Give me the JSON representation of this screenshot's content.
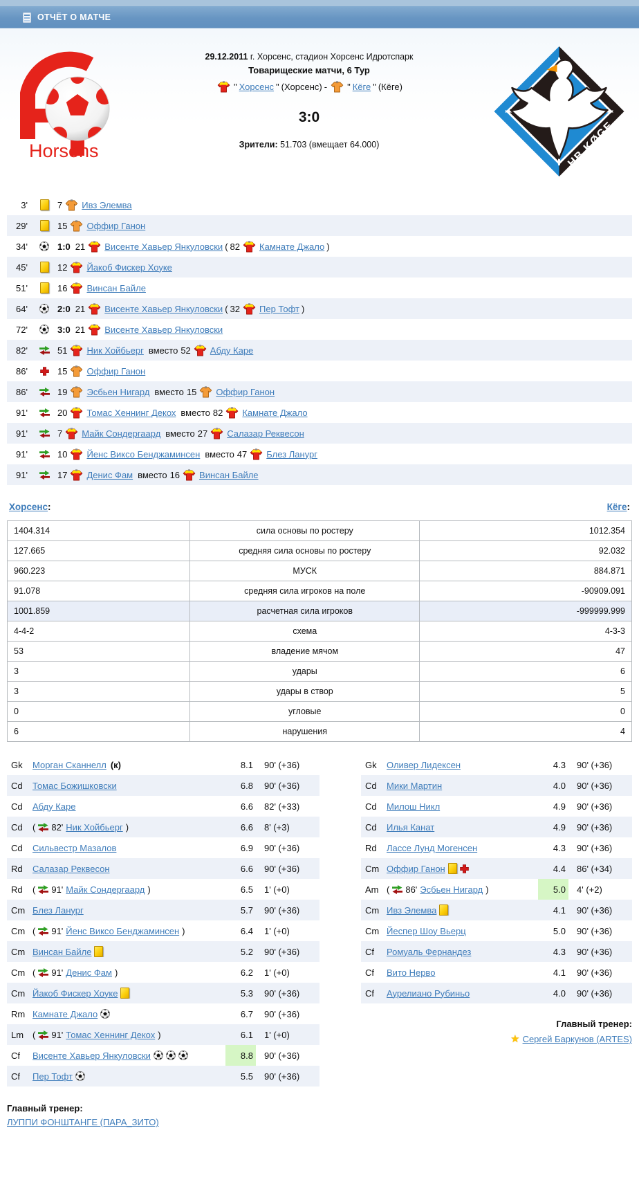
{
  "header": {
    "title": "ОТЧЁТ О МАТЧЕ"
  },
  "match": {
    "date": "29.12.2011",
    "venue": " г. Хорсенс, стадион Хорсенс Идротспарк",
    "tournament": "Товарищеские матчи, 6 Тур",
    "quote": "\"",
    "home": {
      "name": "Хорсенс",
      "alias": " (Хорсенс) "
    },
    "separator": "- ",
    "away": {
      "name": "Кёге",
      "alias": " (Кёге)"
    },
    "score": "3:0",
    "spectators_label": "Зрители:",
    "spectators": " 51.703 (вмещает 64.000)"
  },
  "logos": {
    "home": {
      "caption": "Horsens"
    },
    "away": {
      "caption": "HB KØGE"
    }
  },
  "labels": {
    "instead": "вместо",
    "paren_open": "(",
    "paren_close": ")",
    "captain_suffix": "(к)"
  },
  "icons": {
    "goal": "soccer-ball",
    "yellow-card": "yellow-card",
    "substitution": "sub-arrows-green-red",
    "injury": "red-cross",
    "coach_star": "★"
  },
  "colors": {
    "link": "#3e7cba",
    "row_alt": "#edf1f8",
    "stat_highlight": "#e9eef8",
    "rating_highlight": "#d6f6c5",
    "card_yellow": "#fccf0a",
    "sub_in_green": "#2f9e23",
    "sub_out_red": "#a21212",
    "injury_red": "#d11a1a",
    "home_jersey": "#e5231b",
    "home_jersey_accent": "#ffe400",
    "away_jersey": "#f49b38",
    "home_logo_red": "#e5231b",
    "away_logo_blue": "#1f8ad2",
    "away_logo_black": "#241b19",
    "swan_beak_orange": "#f59300"
  },
  "events": [
    {
      "time": "3'",
      "type": "yellow-card",
      "num": "7",
      "team": "away",
      "player": "Ивз Элемва"
    },
    {
      "time": "29'",
      "type": "yellow-card",
      "num": "15",
      "team": "away",
      "player": "Оффир Ганон"
    },
    {
      "time": "34'",
      "type": "goal",
      "score": "1:0",
      "num": "21",
      "team": "home",
      "player": "Висенте Хавьер Янкуловски",
      "assist": {
        "num": "82",
        "team": "home",
        "player": "Камнате Джало"
      }
    },
    {
      "time": "45'",
      "type": "yellow-card",
      "num": "12",
      "team": "home",
      "player": "Йакоб Фискер Хоуке"
    },
    {
      "time": "51'",
      "type": "yellow-card",
      "num": "16",
      "team": "home",
      "player": "Винсан Байле"
    },
    {
      "time": "64'",
      "type": "goal",
      "score": "2:0",
      "num": "21",
      "team": "home",
      "player": "Висенте Хавьер Янкуловски",
      "assist": {
        "num": "32",
        "team": "home",
        "player": "Пер Тофт"
      }
    },
    {
      "time": "72'",
      "type": "goal",
      "score": "3:0",
      "num": "21",
      "team": "home",
      "player": "Висенте Хавьер Янкуловски"
    },
    {
      "time": "82'",
      "type": "substitution",
      "num": "51",
      "team": "home",
      "player": "Ник Хойбьерг",
      "out": {
        "num": "52",
        "team": "home",
        "player": "Абду Каре"
      }
    },
    {
      "time": "86'",
      "type": "injury",
      "num": "15",
      "team": "away",
      "player": "Оффир Ганон"
    },
    {
      "time": "86'",
      "type": "substitution",
      "num": "19",
      "team": "away",
      "player": "Эсбьен Нигард",
      "out": {
        "num": "15",
        "team": "away",
        "player": "Оффир Ганон"
      }
    },
    {
      "time": "91'",
      "type": "substitution",
      "num": "20",
      "team": "home",
      "player": "Томас Хеннинг Декох",
      "out": {
        "num": "82",
        "team": "home",
        "player": "Камнате Джало"
      }
    },
    {
      "time": "91'",
      "type": "substitution",
      "num": "7",
      "team": "home",
      "player": "Майк Сондергаард",
      "out": {
        "num": "27",
        "team": "home",
        "player": "Салазар Реквесон"
      }
    },
    {
      "time": "91'",
      "type": "substitution",
      "num": "10",
      "team": "home",
      "player": "Йенс Виксо Бенджаминсен",
      "out": {
        "num": "47",
        "team": "home",
        "player": "Блез Ланург"
      }
    },
    {
      "time": "91'",
      "type": "substitution",
      "num": "17",
      "team": "home",
      "player": "Денис Фам",
      "out": {
        "num": "16",
        "team": "home",
        "player": "Винсан Байле"
      }
    }
  ],
  "sections": {
    "home_team": "Хорсенс",
    "away_team": "Кёге",
    "colon": ":"
  },
  "stats": {
    "rows": [
      {
        "home": "1404.314",
        "label": "сила основы по ростеру",
        "away": "1012.354"
      },
      {
        "home": "127.665",
        "label": "средняя сила основы по ростеру",
        "away": "92.032"
      },
      {
        "home": "960.223",
        "label": "МУСК",
        "away": "884.871"
      },
      {
        "home": "91.078",
        "label": "средняя сила игроков на поле",
        "away": "-90909.091"
      },
      {
        "home": "1001.859",
        "label": "расчетная сила игроков",
        "away": "-999999.999",
        "highlight": true
      },
      {
        "home": "4-4-2",
        "label": "схема",
        "away": "4-3-3"
      },
      {
        "home": "53",
        "label": "владение мячом",
        "away": "47"
      },
      {
        "home": "3",
        "label": "удары",
        "away": "6"
      },
      {
        "home": "3",
        "label": "удары в створ",
        "away": "5"
      },
      {
        "home": "0",
        "label": "угловые",
        "away": "0"
      },
      {
        "home": "6",
        "label": "нарушения",
        "away": "4"
      }
    ]
  },
  "rosters": {
    "home": [
      {
        "pos": "Gk",
        "name": "Морган Сканнелл",
        "captain": true,
        "rating": "8.1",
        "time": "90' (+36)"
      },
      {
        "pos": "Cd",
        "name": "Томас Божишковски",
        "rating": "6.8",
        "time": "90' (+36)"
      },
      {
        "pos": "Cd",
        "name": "Абду Каре",
        "rating": "6.6",
        "time": "82' (+33)"
      },
      {
        "pos": "Cd",
        "sub_in": "82'",
        "name": "Ник Хойбьерг",
        "rating": "6.6",
        "time": "8' (+3)"
      },
      {
        "pos": "Cd",
        "name": "Сильвестр Мазалов",
        "rating": "6.9",
        "time": "90' (+36)"
      },
      {
        "pos": "Rd",
        "name": "Салазар Реквесон",
        "rating": "6.6",
        "time": "90' (+36)"
      },
      {
        "pos": "Rd",
        "sub_in": "91'",
        "name": "Майк Сондергаард",
        "rating": "6.5",
        "time": "1' (+0)"
      },
      {
        "pos": "Cm",
        "name": "Блез Ланург",
        "rating": "5.7",
        "time": "90' (+36)"
      },
      {
        "pos": "Cm",
        "sub_in": "91'",
        "name": "Йенс Виксо Бенджаминсен",
        "rating": "6.4",
        "time": "1' (+0)"
      },
      {
        "pos": "Cm",
        "name": "Винсан Байле",
        "icons": [
          "yellow-card"
        ],
        "rating": "5.2",
        "time": "90' (+36)"
      },
      {
        "pos": "Cm",
        "sub_in": "91'",
        "name": "Денис Фам",
        "rating": "6.2",
        "time": "1' (+0)"
      },
      {
        "pos": "Cm",
        "name": "Йакоб Фискер Хоуке",
        "icons": [
          "yellow-card"
        ],
        "rating": "5.3",
        "time": "90' (+36)"
      },
      {
        "pos": "Rm",
        "name": "Камнате Джало",
        "icons": [
          "ball"
        ],
        "rating": "6.7",
        "time": "90' (+36)"
      },
      {
        "pos": "Lm",
        "sub_in": "91'",
        "name": "Томас Хеннинг Декох",
        "rating": "6.1",
        "time": "1' (+0)"
      },
      {
        "pos": "Cf",
        "name": "Висенте Хавьер Янкуловски",
        "icons": [
          "ball",
          "ball",
          "ball"
        ],
        "rating": "8.8",
        "highlight": true,
        "time": "90' (+36)"
      },
      {
        "pos": "Cf",
        "name": "Пер Тофт",
        "icons": [
          "ball"
        ],
        "rating": "5.5",
        "time": "90' (+36)"
      }
    ],
    "away": [
      {
        "pos": "Gk",
        "name": "Оливер Лидексен",
        "rating": "4.3",
        "time": "90' (+36)"
      },
      {
        "pos": "Cd",
        "name": "Мики Мартин",
        "rating": "4.0",
        "time": "90' (+36)"
      },
      {
        "pos": "Cd",
        "name": "Милош Никл",
        "rating": "4.9",
        "time": "90' (+36)"
      },
      {
        "pos": "Cd",
        "name": "Илья Канат",
        "rating": "4.9",
        "time": "90' (+36)"
      },
      {
        "pos": "Rd",
        "name": "Лассе Лунд Могенсен",
        "rating": "4.3",
        "time": "90' (+36)"
      },
      {
        "pos": "Cm",
        "name": "Оффир Ганон",
        "icons": [
          "yellow-card",
          "injury"
        ],
        "rating": "4.4",
        "time": "86' (+34)"
      },
      {
        "pos": "Am",
        "sub_in": "86'",
        "name": "Эсбьен Нигард",
        "rating": "5.0",
        "highlight": true,
        "time": "4' (+2)"
      },
      {
        "pos": "Cm",
        "name": "Ивз Элемва",
        "icons": [
          "yellow-card"
        ],
        "rating": "4.1",
        "time": "90' (+36)"
      },
      {
        "pos": "Cm",
        "name": "Йеспер Шоу Вьерц",
        "rating": "5.0",
        "time": "90' (+36)"
      },
      {
        "pos": "Cf",
        "name": "Ромуаль Фернандез",
        "rating": "4.3",
        "time": "90' (+36)"
      },
      {
        "pos": "Cf",
        "name": "Вито Нерво",
        "rating": "4.1",
        "time": "90' (+36)"
      },
      {
        "pos": "Cf",
        "name": "Аурелиано Рубиньо",
        "rating": "4.0",
        "time": "90' (+36)"
      }
    ]
  },
  "coaches": {
    "home": {
      "label": "Главный тренер:",
      "name": "ЛУППИ ФОНШТАНГЕ (ПАРА_ЗИТО)"
    },
    "away": {
      "label": "Главный тренер:",
      "name": "Сергей Баркунов (ARTES)",
      "star": "★"
    }
  }
}
